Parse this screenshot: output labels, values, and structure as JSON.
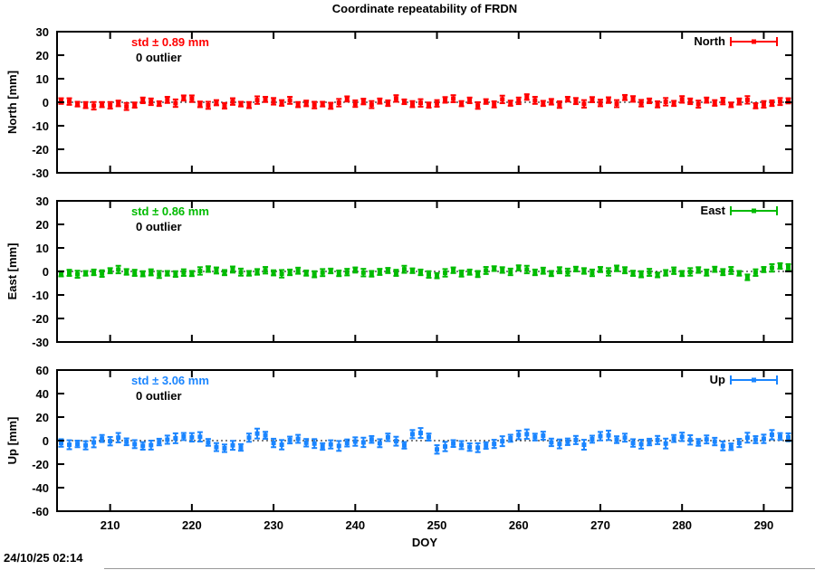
{
  "timestamp": "24/10/25 02:14",
  "chart_data": {
    "type": "scatter",
    "title": "Coordinate repeatability of FRDN",
    "xlabel": "DOY",
    "xlim": [
      203.5,
      293.5
    ],
    "xticks": [
      210,
      220,
      230,
      240,
      250,
      260,
      270,
      280,
      290
    ],
    "grid": false,
    "zero_line": "dotted",
    "legend_position": "top-right-inside",
    "marker": "filled-square-with-yerrorbars",
    "x": [
      204,
      205,
      206,
      207,
      208,
      209,
      210,
      211,
      212,
      213,
      214,
      215,
      216,
      217,
      218,
      219,
      220,
      221,
      222,
      223,
      224,
      225,
      226,
      227,
      228,
      229,
      230,
      231,
      232,
      233,
      234,
      235,
      236,
      237,
      238,
      239,
      240,
      241,
      242,
      243,
      244,
      245,
      246,
      247,
      248,
      249,
      250,
      251,
      252,
      253,
      254,
      255,
      256,
      257,
      258,
      259,
      260,
      261,
      262,
      263,
      264,
      265,
      266,
      267,
      268,
      269,
      270,
      271,
      272,
      273,
      274,
      275,
      276,
      277,
      278,
      279,
      280,
      281,
      282,
      283,
      284,
      285,
      286,
      287,
      288,
      289,
      290,
      291,
      292,
      293
    ],
    "series": [
      {
        "key": "north",
        "name": "North",
        "ylabel": "North [mm]",
        "std": "std ± 0.89 mm",
        "outliers": "0 outlier",
        "color": "#ff0000",
        "ylim": [
          -30,
          30
        ],
        "yticks": [
          30,
          20,
          10,
          0,
          -10,
          -20,
          -30
        ],
        "values": [
          0.5,
          0.3,
          -0.8,
          -1.2,
          -1.5,
          -1.0,
          -1.3,
          -0.5,
          -1.8,
          -1.2,
          0.8,
          0.2,
          -0.6,
          1.0,
          -0.4,
          1.8,
          1.5,
          -0.9,
          -1.3,
          -0.2,
          -1.5,
          0.3,
          -0.8,
          -1.2,
          0.9,
          1.2,
          0.4,
          -0.3,
          0.8,
          -1.0,
          -0.5,
          -1.2,
          -0.8,
          -1.5,
          -0.2,
          1.4,
          -0.6,
          0.3,
          -1.0,
          0.5,
          -0.4,
          1.6,
          0.2,
          -0.8,
          -0.3,
          -1.2,
          -0.5,
          1.0,
          1.5,
          -0.6,
          0.8,
          -1.4,
          0.3,
          -0.9,
          1.2,
          -0.4,
          0.6,
          2.2,
          0.8,
          -0.5,
          0.2,
          -1.0,
          1.3,
          0.5,
          -0.7,
          1.1,
          -0.3,
          0.9,
          -0.6,
          2.0,
          1.4,
          -0.4,
          0.6,
          -0.9,
          0.2,
          -0.5,
          1.2,
          0.4,
          -0.8,
          0.9,
          -0.3,
          0.5,
          -1.1,
          0.3,
          1.0,
          -1.5,
          -0.9,
          -0.4,
          0.3,
          0.6
        ],
        "errors": [
          1.2,
          1.4,
          1.0,
          1.3,
          1.6,
          1.1,
          1.4,
          1.2,
          1.5,
          1.1,
          1.2,
          1.4,
          1.0,
          1.3,
          1.6,
          1.1,
          1.4,
          1.2,
          1.5,
          1.1,
          1.2,
          1.4,
          1.0,
          1.3,
          1.6,
          1.1,
          1.4,
          1.2,
          1.5,
          1.1,
          1.2,
          1.4,
          1.0,
          1.3,
          1.6,
          1.1,
          1.4,
          1.2,
          1.5,
          1.1,
          1.2,
          1.4,
          1.0,
          1.3,
          1.6,
          1.1,
          1.4,
          1.2,
          1.5,
          1.1,
          1.2,
          1.4,
          1.0,
          1.3,
          1.6,
          1.1,
          1.4,
          1.2,
          1.5,
          1.1,
          1.2,
          1.4,
          1.0,
          1.3,
          1.6,
          1.1,
          1.4,
          1.2,
          1.5,
          1.1,
          1.2,
          1.4,
          1.0,
          1.3,
          1.6,
          1.1,
          1.4,
          1.2,
          1.5,
          1.1,
          1.2,
          1.4,
          1.0,
          1.3,
          1.6,
          1.1,
          1.4,
          1.2,
          1.5,
          1.1
        ]
      },
      {
        "key": "east",
        "name": "East",
        "ylabel": "East [mm]",
        "std": "std ± 0.86 mm",
        "outliers": "0 outlier",
        "color": "#00bb00",
        "ylim": [
          -30,
          30
        ],
        "yticks": [
          30,
          20,
          10,
          0,
          -10,
          -20,
          -30
        ],
        "values": [
          -1.0,
          -0.6,
          -1.2,
          -0.8,
          -0.4,
          -0.9,
          0.3,
          0.8,
          -0.2,
          -0.6,
          -1.0,
          -0.4,
          -1.3,
          -0.8,
          -1.1,
          -0.5,
          -0.9,
          0.2,
          1.0,
          0.4,
          -0.5,
          0.8,
          -0.3,
          -0.8,
          -0.2,
          0.5,
          -0.6,
          -1.0,
          -0.4,
          0.3,
          -0.7,
          -1.2,
          -0.5,
          0.2,
          -0.8,
          -0.3,
          0.6,
          -0.5,
          -1.0,
          -0.2,
          0.4,
          -0.6,
          0.9,
          0.3,
          -0.4,
          -1.3,
          -1.8,
          -0.6,
          0.5,
          -0.9,
          -0.3,
          -1.1,
          0.4,
          1.2,
          0.6,
          -0.2,
          1.5,
          0.8,
          -0.4,
          0.3,
          -0.9,
          0.5,
          -0.3,
          1.0,
          0.2,
          -0.6,
          0.8,
          -0.2,
          1.3,
          0.5,
          -0.8,
          -1.2,
          -0.4,
          -1.5,
          -0.6,
          0.3,
          -0.9,
          -0.2,
          0.6,
          -0.5,
          0.9,
          -0.3,
          0.4,
          -0.8,
          -2.5,
          -0.5,
          0.8,
          1.5,
          2.3,
          1.8
        ],
        "errors": [
          1.1,
          1.3,
          1.5,
          1.0,
          1.2,
          1.4,
          1.1,
          1.6,
          1.2,
          1.3,
          1.1,
          1.3,
          1.5,
          1.0,
          1.2,
          1.4,
          1.1,
          1.6,
          1.2,
          1.3,
          1.1,
          1.3,
          1.5,
          1.0,
          1.2,
          1.4,
          1.1,
          1.6,
          1.2,
          1.3,
          1.1,
          1.3,
          1.5,
          1.0,
          1.2,
          1.4,
          1.1,
          1.6,
          1.2,
          1.3,
          1.1,
          1.3,
          1.5,
          1.0,
          1.2,
          1.4,
          1.1,
          1.6,
          1.2,
          1.3,
          1.1,
          1.3,
          1.5,
          1.0,
          1.2,
          1.4,
          1.1,
          1.6,
          1.2,
          1.3,
          1.1,
          1.3,
          1.5,
          1.0,
          1.2,
          1.4,
          1.1,
          1.6,
          1.2,
          1.3,
          1.1,
          1.3,
          1.5,
          1.0,
          1.2,
          1.4,
          1.1,
          1.6,
          1.2,
          1.3,
          1.1,
          1.3,
          1.5,
          1.0,
          1.2,
          1.4,
          1.1,
          1.6,
          1.2,
          1.3
        ]
      },
      {
        "key": "up",
        "name": "Up",
        "ylabel": "Up [mm]",
        "std": "std ± 3.06 mm",
        "outliers": "0 outlier",
        "color": "#1a85ff",
        "ylim": [
          -60,
          60
        ],
        "yticks": [
          60,
          40,
          20,
          0,
          -20,
          -40,
          -60
        ],
        "values": [
          -2.0,
          -3.5,
          -2.8,
          -4.0,
          -1.5,
          1.8,
          -0.5,
          2.5,
          -1.0,
          -3.0,
          -4.5,
          -3.8,
          -1.2,
          0.8,
          2.0,
          3.5,
          2.8,
          3.2,
          -1.5,
          -5.5,
          -6.5,
          -4.0,
          -5.8,
          2.5,
          6.0,
          4.5,
          -2.0,
          -3.5,
          0.5,
          1.5,
          -1.8,
          -2.5,
          -5.0,
          -3.2,
          -4.5,
          -2.0,
          -0.8,
          -1.5,
          1.0,
          -2.2,
          2.8,
          -0.5,
          -4.0,
          5.5,
          6.5,
          3.0,
          -7.5,
          -5.0,
          -2.5,
          -3.8,
          -5.5,
          -6.0,
          -4.2,
          -2.8,
          -0.5,
          2.0,
          4.8,
          5.5,
          3.0,
          4.2,
          -1.5,
          -2.8,
          -1.0,
          0.5,
          -3.5,
          1.2,
          3.8,
          4.5,
          0.8,
          2.5,
          -2.0,
          -3.0,
          -1.2,
          0.5,
          -2.5,
          1.8,
          3.2,
          0.6,
          -1.5,
          1.0,
          -0.8,
          -4.5,
          -5.2,
          -2.0,
          2.5,
          0.8,
          1.5,
          5.0,
          3.5,
          2.8
        ],
        "errors": [
          3.2,
          3.8,
          2.8,
          3.5,
          4.2,
          3.0,
          3.6,
          4.0,
          2.9,
          3.4,
          3.2,
          3.8,
          2.8,
          3.5,
          4.2,
          3.0,
          3.6,
          4.0,
          2.9,
          3.4,
          3.2,
          3.8,
          2.8,
          3.5,
          4.2,
          3.0,
          3.6,
          4.0,
          2.9,
          3.4,
          3.2,
          3.8,
          2.8,
          3.5,
          4.2,
          3.0,
          3.6,
          4.0,
          2.9,
          3.4,
          3.2,
          3.8,
          2.8,
          3.5,
          4.2,
          3.0,
          3.6,
          4.0,
          2.9,
          3.4,
          3.2,
          3.8,
          2.8,
          3.5,
          4.2,
          3.0,
          3.6,
          4.0,
          2.9,
          3.4,
          3.2,
          3.8,
          2.8,
          3.5,
          4.2,
          3.0,
          3.6,
          4.0,
          2.9,
          3.4,
          3.2,
          3.8,
          2.8,
          3.5,
          4.2,
          3.0,
          3.6,
          4.0,
          2.9,
          3.4,
          3.2,
          3.8,
          2.8,
          3.5,
          4.2,
          3.0,
          3.6,
          4.0,
          2.9,
          3.4
        ]
      }
    ]
  }
}
